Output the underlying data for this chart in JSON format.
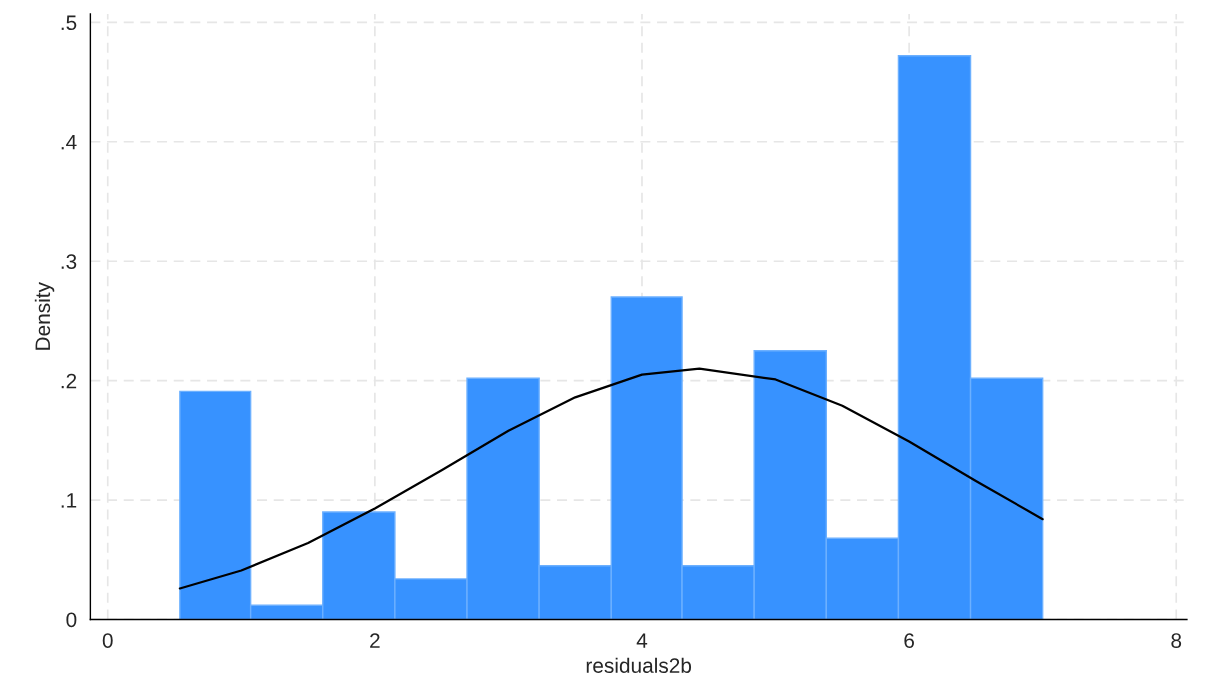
{
  "chart_data": {
    "type": "histogram",
    "xlabel": "residuals2b",
    "ylabel": "Density",
    "bins": [
      0.54,
      1.07,
      1.61,
      2.15,
      2.69,
      3.23,
      3.77,
      4.3,
      4.84,
      5.38,
      5.92,
      6.46,
      7.0
    ],
    "values": [
      0.191,
      0.012,
      0.09,
      0.034,
      0.202,
      0.045,
      0.27,
      0.045,
      0.225,
      0.068,
      0.472,
      0.202
    ],
    "color": "#3792ff",
    "series": [
      {
        "type": "line",
        "color": "#000000",
        "x": [
          0.54,
          1.0,
          1.5,
          2.0,
          2.5,
          3.0,
          3.5,
          4.0,
          4.43,
          5.0,
          5.5,
          6.0,
          6.5,
          7.0
        ],
        "values": [
          0.026,
          0.041,
          0.064,
          0.093,
          0.125,
          0.158,
          0.186,
          0.205,
          0.21,
          0.201,
          0.179,
          0.149,
          0.116,
          0.084
        ]
      }
    ],
    "xlim": [
      -0.13,
      8.08
    ],
    "xticks": [
      0,
      2,
      4,
      6,
      8
    ],
    "ylim": [
      0,
      0.507
    ],
    "yticks": [
      {
        "value": 0,
        "label": "0"
      },
      {
        "value": 0.1,
        "label": ".1"
      },
      {
        "value": 0.2,
        "label": ".2"
      },
      {
        "value": 0.3,
        "label": ".3"
      },
      {
        "value": 0.4,
        "label": ".4"
      },
      {
        "value": 0.5,
        "label": ".5"
      }
    ],
    "grid": true
  }
}
